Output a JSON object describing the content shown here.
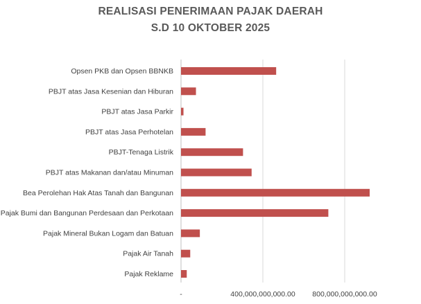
{
  "chart_data": {
    "type": "bar",
    "orientation": "horizontal",
    "title_line1": "REALISASI PENERIMAAN PAJAK DAERAH",
    "title_line2": "S.D 10 OKTOBER 2025",
    "xlabel": "",
    "ylabel": "",
    "xlim": [
      0,
      950000000000
    ],
    "x_ticks": [
      0,
      400000000000,
      800000000000
    ],
    "x_tick_labels": [
      "-",
      "400,000,000,000.00",
      "800,000,000,000.00"
    ],
    "grid": "vertical",
    "legend": "none",
    "bar_color": "#c0504d",
    "categories": [
      "Opsen PKB dan Opsen BBNKB",
      "PBJT atas Jasa Kesenian dan Hiburan",
      "PBJT atas Jasa Parkir",
      "PBJT atas Jasa Perhotelan",
      "PBJT-Tenaga Listrik",
      "PBJT atas Makanan dan/atau Minuman",
      "Bea Perolehan Hak Atas Tanah dan Bangunan",
      "Pajak Bumi dan Bangunan Perdesaan dan Perkotaan",
      "Pajak Mineral Bukan Logam dan Batuan",
      "Pajak Air Tanah",
      "Pajak Reklame"
    ],
    "values": [
      465000000000,
      73000000000,
      12000000000,
      120000000000,
      303000000000,
      345000000000,
      922000000000,
      720000000000,
      92000000000,
      45000000000,
      28000000000
    ]
  }
}
